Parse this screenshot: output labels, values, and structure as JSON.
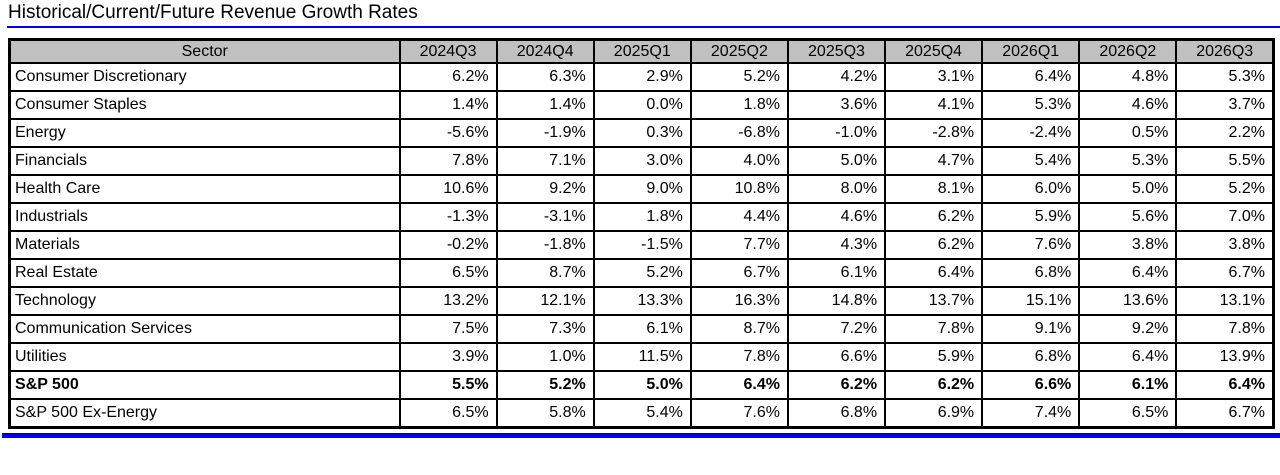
{
  "title": "Historical/Current/Future Revenue Growth Rates",
  "colors": {
    "accent_blue": "#0101ef",
    "header_bg": "#c0c0c0",
    "border": "#000000",
    "text": "#000000"
  },
  "chart_data": {
    "type": "table",
    "title": "Historical/Current/Future Revenue Growth Rates",
    "columns": [
      "Sector",
      "2024Q3",
      "2024Q4",
      "2025Q1",
      "2025Q2",
      "2025Q3",
      "2025Q4",
      "2026Q1",
      "2026Q2",
      "2026Q3"
    ],
    "rows": [
      {
        "sector": "Consumer Discretionary",
        "bold": false,
        "values": [
          "6.2%",
          "6.3%",
          "2.9%",
          "5.2%",
          "4.2%",
          "3.1%",
          "6.4%",
          "4.8%",
          "5.3%"
        ]
      },
      {
        "sector": "Consumer Staples",
        "bold": false,
        "values": [
          "1.4%",
          "1.4%",
          "0.0%",
          "1.8%",
          "3.6%",
          "4.1%",
          "5.3%",
          "4.6%",
          "3.7%"
        ]
      },
      {
        "sector": "Energy",
        "bold": false,
        "values": [
          "-5.6%",
          "-1.9%",
          "0.3%",
          "-6.8%",
          "-1.0%",
          "-2.8%",
          "-2.4%",
          "0.5%",
          "2.2%"
        ]
      },
      {
        "sector": "Financials",
        "bold": false,
        "values": [
          "7.8%",
          "7.1%",
          "3.0%",
          "4.0%",
          "5.0%",
          "4.7%",
          "5.4%",
          "5.3%",
          "5.5%"
        ]
      },
      {
        "sector": "Health Care",
        "bold": false,
        "values": [
          "10.6%",
          "9.2%",
          "9.0%",
          "10.8%",
          "8.0%",
          "8.1%",
          "6.0%",
          "5.0%",
          "5.2%"
        ]
      },
      {
        "sector": "Industrials",
        "bold": false,
        "values": [
          "-1.3%",
          "-3.1%",
          "1.8%",
          "4.4%",
          "4.6%",
          "6.2%",
          "5.9%",
          "5.6%",
          "7.0%"
        ]
      },
      {
        "sector": "Materials",
        "bold": false,
        "values": [
          "-0.2%",
          "-1.8%",
          "-1.5%",
          "7.7%",
          "4.3%",
          "6.2%",
          "7.6%",
          "3.8%",
          "3.8%"
        ]
      },
      {
        "sector": "Real Estate",
        "bold": false,
        "values": [
          "6.5%",
          "8.7%",
          "5.2%",
          "6.7%",
          "6.1%",
          "6.4%",
          "6.8%",
          "6.4%",
          "6.7%"
        ]
      },
      {
        "sector": "Technology",
        "bold": false,
        "values": [
          "13.2%",
          "12.1%",
          "13.3%",
          "16.3%",
          "14.8%",
          "13.7%",
          "15.1%",
          "13.6%",
          "13.1%"
        ]
      },
      {
        "sector": "Communication Services",
        "bold": false,
        "values": [
          "7.5%",
          "7.3%",
          "6.1%",
          "8.7%",
          "7.2%",
          "7.8%",
          "9.1%",
          "9.2%",
          "7.8%"
        ]
      },
      {
        "sector": "Utilities",
        "bold": false,
        "values": [
          "3.9%",
          "1.0%",
          "11.5%",
          "7.8%",
          "6.6%",
          "5.9%",
          "6.8%",
          "6.4%",
          "13.9%"
        ]
      },
      {
        "sector": "S&P 500",
        "bold": true,
        "values": [
          "5.5%",
          "5.2%",
          "5.0%",
          "6.4%",
          "6.2%",
          "6.2%",
          "6.6%",
          "6.1%",
          "6.4%"
        ]
      },
      {
        "sector": "S&P 500 Ex-Energy",
        "bold": false,
        "values": [
          "6.5%",
          "5.8%",
          "5.4%",
          "7.6%",
          "6.8%",
          "6.9%",
          "7.4%",
          "6.5%",
          "6.7%"
        ]
      }
    ],
    "layout": {
      "header_align": "center",
      "sector_align": "left",
      "value_align": "right",
      "grid": true
    }
  }
}
